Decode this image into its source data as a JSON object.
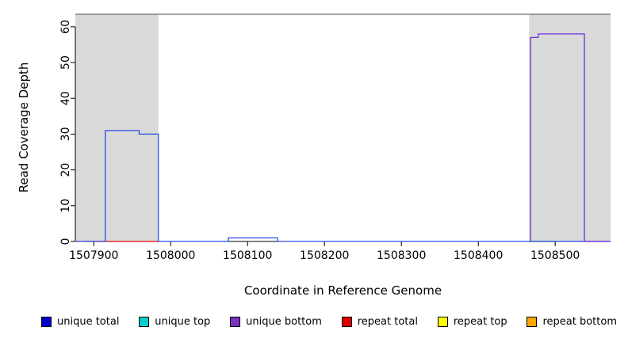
{
  "chart_data": {
    "type": "line",
    "subtype": "step-coverage",
    "title": "",
    "xlabel": "Coordinate in Reference Genome",
    "ylabel": "Read Coverage Depth",
    "xlim": [
      1507876,
      1508572
    ],
    "ylim": [
      0,
      63.5
    ],
    "xticks": [
      1507900,
      1508000,
      1508100,
      1508200,
      1508300,
      1508400,
      1508500
    ],
    "yticks": [
      0,
      10,
      20,
      30,
      40,
      50,
      60
    ],
    "grid": false,
    "legend_position": "bottom",
    "axis_color": "#000000",
    "top_border_color": "#4D4D4D",
    "region_color": "#D9D9D9",
    "shaded_regions": [
      {
        "x0": 1507876,
        "x1": 1507984,
        "label": "left-gray-region"
      },
      {
        "x0": 1508466,
        "x1": 1508572,
        "label": "right-gray-region"
      }
    ],
    "series": [
      {
        "key": "repeat-total-baseline",
        "name": "repeat total",
        "color": "#E60000",
        "points": [
          [
            1507890,
            0
          ],
          [
            1507984,
            0
          ]
        ]
      },
      {
        "key": "green-baseline-segment",
        "name": "",
        "color": "#00B800",
        "points": [
          [
            1508466,
            0
          ],
          [
            1508500,
            0
          ]
        ]
      },
      {
        "key": "unique-total",
        "name": "unique total",
        "color": "#2B4BE8",
        "points": [
          [
            1507876,
            0
          ],
          [
            1507915,
            0
          ],
          [
            1507915,
            31
          ],
          [
            1507959,
            31
          ],
          [
            1507959,
            30
          ],
          [
            1507984,
            30
          ],
          [
            1507984,
            0
          ],
          [
            1508075,
            0
          ],
          [
            1508075,
            1
          ],
          [
            1508139,
            1
          ],
          [
            1508139,
            0
          ],
          [
            1508572,
            0
          ]
        ]
      },
      {
        "key": "unique-bottom",
        "name": "unique bottom",
        "color": "#6A2BD9",
        "points": [
          [
            1508468,
            0
          ],
          [
            1508468,
            57
          ],
          [
            1508478,
            57
          ],
          [
            1508478,
            58
          ],
          [
            1508538,
            58
          ],
          [
            1508538,
            0
          ],
          [
            1508572,
            0
          ]
        ]
      }
    ]
  },
  "legend": {
    "items": [
      {
        "label": "unique total",
        "color": "#0000CC"
      },
      {
        "label": "unique top",
        "color": "#00CCCC"
      },
      {
        "label": "unique bottom",
        "color": "#7B2FBE"
      },
      {
        "label": "repeat total",
        "color": "#DD0000"
      },
      {
        "label": "repeat top",
        "color": "#FFFF00"
      },
      {
        "label": "repeat bottom",
        "color": "#FFA500"
      }
    ]
  }
}
